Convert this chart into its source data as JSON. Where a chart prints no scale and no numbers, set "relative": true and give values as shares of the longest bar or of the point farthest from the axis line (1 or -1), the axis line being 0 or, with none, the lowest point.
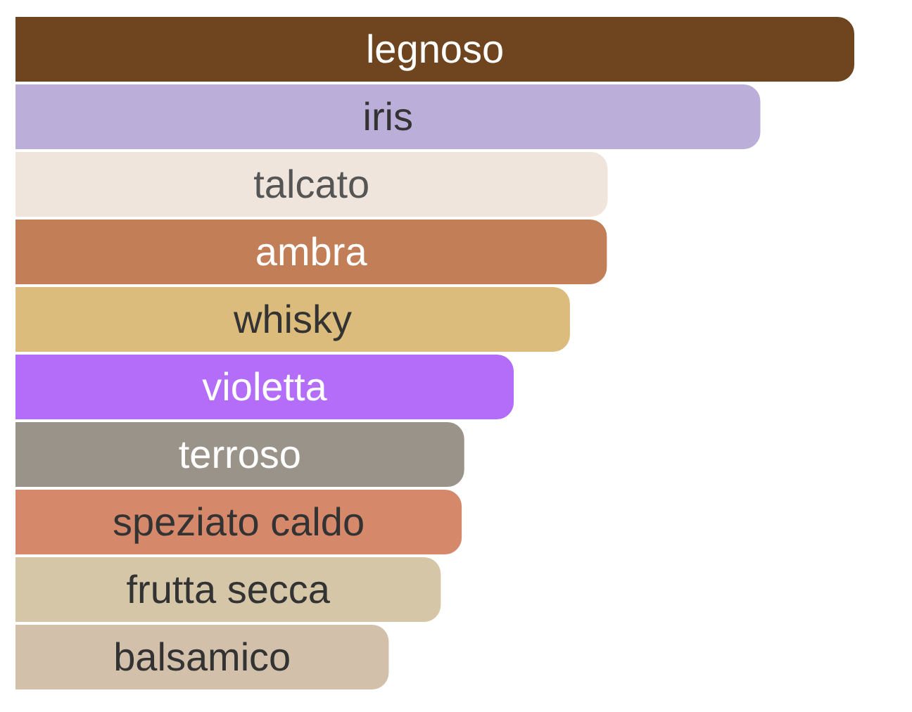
{
  "chart_data": {
    "type": "bar",
    "orientation": "horizontal",
    "relative": true,
    "categories": [
      "legnoso",
      "iris",
      "talcato",
      "ambra",
      "whisky",
      "violetta",
      "terroso",
      "speziato caldo",
      "frutta secca",
      "balsamico"
    ],
    "values": [
      1,
      0.888,
      0.706,
      0.705,
      0.661,
      0.594,
      0.535,
      0.532,
      0.507,
      0.445
    ],
    "colors": [
      "#6f4520",
      "#bbaed9",
      "#efe5dc",
      "#c27e56",
      "#dcbc7c",
      "#b46df9",
      "#9a9389",
      "#d6896a",
      "#d4c6a6",
      "#d3c0aa"
    ]
  }
}
